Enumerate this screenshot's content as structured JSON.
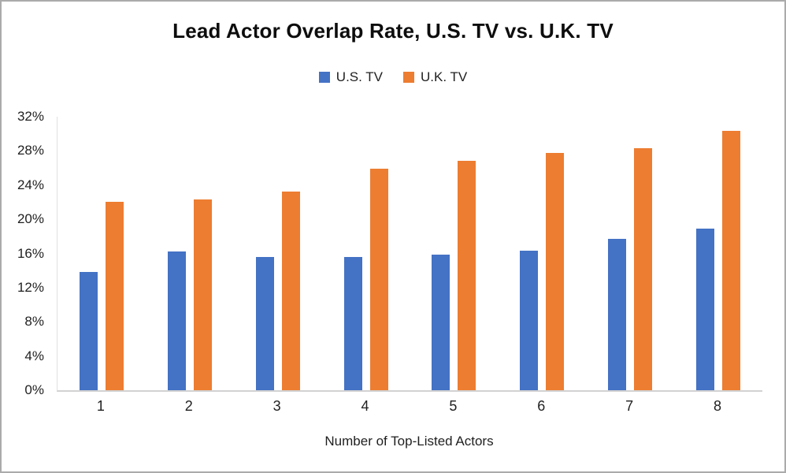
{
  "chart_data": {
    "type": "bar",
    "title": "Lead Actor Overlap Rate, U.S. TV vs. U.K. TV",
    "xlabel": "Number of Top-Listed Actors",
    "ylabel": "",
    "categories": [
      "1",
      "2",
      "3",
      "4",
      "5",
      "6",
      "7",
      "8"
    ],
    "series": [
      {
        "name": "U.S. TV",
        "color": "#4472C4",
        "values": [
          13.8,
          16.2,
          15.6,
          15.6,
          15.9,
          16.3,
          17.7,
          18.9
        ]
      },
      {
        "name": "U.K. TV",
        "color": "#ED7D31",
        "values": [
          22.0,
          22.3,
          23.2,
          25.9,
          26.8,
          27.8,
          28.3,
          30.3
        ]
      }
    ],
    "ylim": [
      0,
      32
    ],
    "yticks": [
      "0%",
      "4%",
      "8%",
      "12%",
      "16%",
      "20%",
      "24%",
      "28%",
      "32%"
    ],
    "grid": "off",
    "legend_position": "top-center",
    "value_suffix": "%"
  }
}
